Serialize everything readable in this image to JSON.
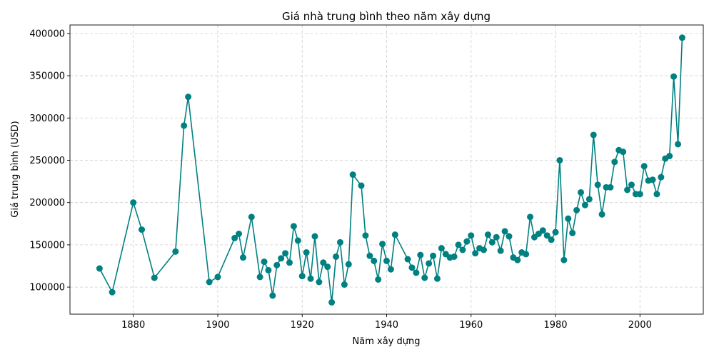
{
  "chart_data": {
    "type": "line",
    "title": "Giá nhà trung bình theo năm xây dựng",
    "xlabel": "Năm xây dựng",
    "ylabel": "Giá trung bình (USD)",
    "xlim": [
      1865,
      2015
    ],
    "ylim": [
      68000,
      410000
    ],
    "xticks": [
      1880,
      1900,
      1920,
      1940,
      1960,
      1980,
      2000
    ],
    "yticks": [
      100000,
      150000,
      200000,
      250000,
      300000,
      350000,
      400000
    ],
    "grid": true,
    "color": "#008080",
    "series": [
      {
        "x": [
          1872,
          1875,
          1880,
          1882,
          1885,
          1890,
          1892,
          1893,
          1898,
          1900,
          1904,
          1905,
          1906,
          1908,
          1910,
          1911,
          1912,
          1913,
          1914,
          1915,
          1916,
          1917,
          1918,
          1919,
          1920,
          1921,
          1922,
          1923,
          1924,
          1925,
          1926,
          1927,
          1928,
          1929,
          1930,
          1931,
          1932,
          1934,
          1935,
          1936,
          1937,
          1938,
          1939,
          1940,
          1941,
          1942,
          1945,
          1946,
          1947,
          1948,
          1949,
          1950,
          1951,
          1952,
          1953,
          1954,
          1955,
          1956,
          1957,
          1958,
          1959,
          1960,
          1961,
          1962,
          1963,
          1964,
          1965,
          1966,
          1967,
          1968,
          1969,
          1970,
          1971,
          1972,
          1973,
          1974,
          1975,
          1976,
          1977,
          1978,
          1979,
          1980,
          1981,
          1982,
          1983,
          1984,
          1985,
          1986,
          1987,
          1988,
          1989,
          1990,
          1991,
          1992,
          1993,
          1994,
          1995,
          1996,
          1997,
          1998,
          1999,
          2000,
          2001,
          2002,
          2003,
          2004,
          2005,
          2006,
          2007,
          2008,
          2009,
          2010
        ],
        "y": [
          122000,
          94000,
          200000,
          168000,
          111000,
          142000,
          291000,
          325000,
          106000,
          112000,
          158000,
          163000,
          135000,
          183000,
          112000,
          130000,
          120000,
          90000,
          126000,
          134000,
          140000,
          129000,
          172000,
          155000,
          113000,
          141000,
          110000,
          160000,
          106000,
          129000,
          124000,
          82000,
          136000,
          153000,
          103000,
          127000,
          233000,
          220000,
          161000,
          137000,
          131000,
          109000,
          151000,
          131000,
          121000,
          162000,
          133000,
          123000,
          117000,
          138000,
          111000,
          128000,
          137000,
          110000,
          146000,
          139000,
          135000,
          136000,
          150000,
          144000,
          154000,
          161000,
          140000,
          146000,
          144000,
          162000,
          153000,
          159000,
          143000,
          166000,
          160000,
          135000,
          132000,
          141000,
          139000,
          183000,
          159000,
          163000,
          167000,
          161000,
          156000,
          165000,
          250000,
          132000,
          181000,
          164000,
          191000,
          212000,
          197000,
          204000,
          280000,
          221000,
          186000,
          218000,
          218000,
          248000,
          262000,
          260000,
          215000,
          221000,
          210000,
          210000,
          243000,
          226000,
          227000,
          210000,
          230000,
          252000,
          255000,
          349000,
          269000,
          395000
        ]
      }
    ]
  }
}
